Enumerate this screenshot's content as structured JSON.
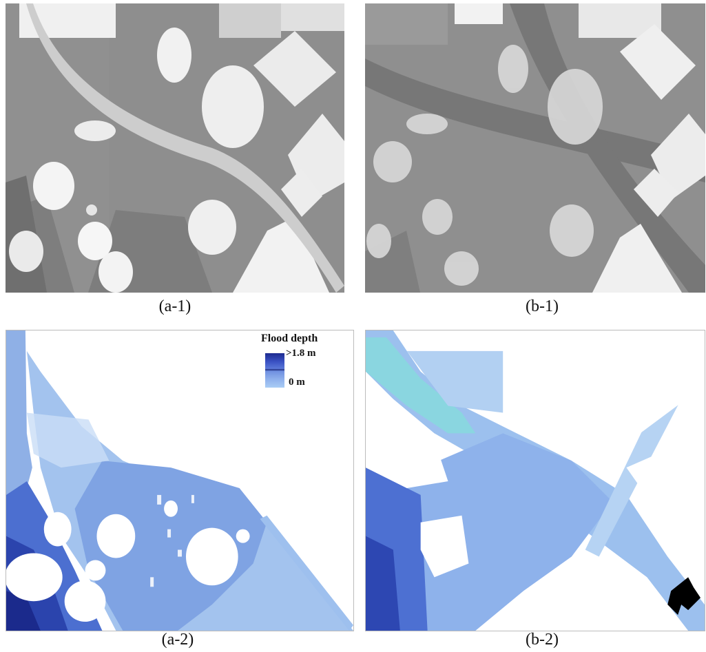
{
  "panels": {
    "a1": {
      "caption": "(a-1)"
    },
    "b1": {
      "caption": "(b-1)"
    },
    "a2": {
      "caption": "(a-2)"
    },
    "b2": {
      "caption": "(b-2)"
    }
  },
  "legend": {
    "title": "Flood depth",
    "max_label": ">1.8 m",
    "min_label": "0 m"
  },
  "colors": {
    "ground": "#8c8c8c",
    "road": "#7a7a7a",
    "building": "#e6e6e6",
    "flood_shallow": "#a9cdf5",
    "flood_deep": "#1d2b8f"
  }
}
